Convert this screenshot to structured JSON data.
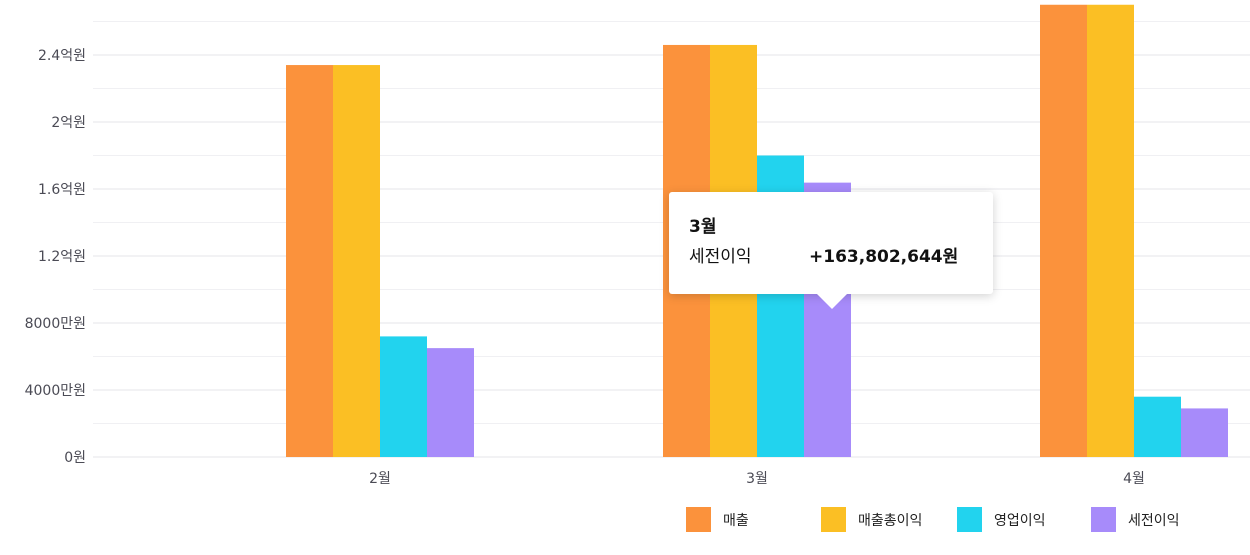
{
  "chart_data": {
    "type": "bar",
    "categories": [
      "2월",
      "3월",
      "4월"
    ],
    "series": [
      {
        "name": "매출",
        "color": "#fb923c",
        "values": [
          234000000,
          246000000,
          270000000
        ]
      },
      {
        "name": "매출총이익",
        "color": "#fbbf24",
        "values": [
          234000000,
          246000000,
          270000000
        ]
      },
      {
        "name": "영업이익",
        "color": "#22d3ee",
        "values": [
          72000000,
          180000000,
          36000000
        ]
      },
      {
        "name": "세전이익",
        "color": "#a78bfa",
        "values": [
          65000000,
          163802644,
          29000000
        ]
      }
    ],
    "yticks": [
      {
        "value": 0,
        "label": "0원"
      },
      {
        "value": 40000000,
        "label": "4000만원"
      },
      {
        "value": 80000000,
        "label": "8000만원"
      },
      {
        "value": 120000000,
        "label": "1.2억원"
      },
      {
        "value": 160000000,
        "label": "1.6억원"
      },
      {
        "value": 200000000,
        "label": "2억원"
      },
      {
        "value": 240000000,
        "label": "2.4억원"
      }
    ],
    "ylim": [
      0,
      260000000
    ],
    "grid": true,
    "legend_position": "bottom-right"
  },
  "tooltip": {
    "title": "3월",
    "series_name": "세전이익",
    "value": "+163,802,644원"
  }
}
